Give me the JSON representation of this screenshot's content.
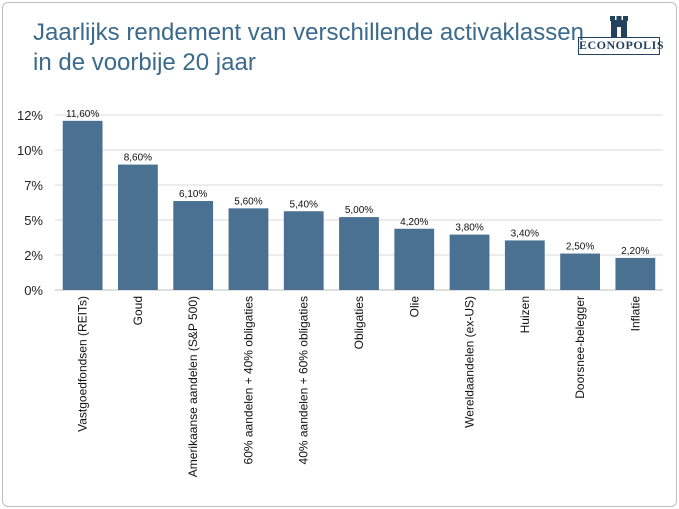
{
  "header": {
    "title_line1": "Jaarlijks rendement van verschillende activaklassen",
    "title_line2": "in de voorbije 20 jaar",
    "logo_text": "ECONOPOLIS"
  },
  "colors": {
    "bar": "#4a7191",
    "title": "#3b6a8c",
    "grid": "#d9d9d9"
  },
  "chart_data": {
    "type": "bar",
    "title": "Jaarlijks rendement van verschillende activaklassen in de voorbije 20 jaar",
    "xlabel": "",
    "ylabel": "",
    "ylim": [
      0,
      12
    ],
    "yticks": [
      0,
      2.4,
      4.8,
      7.2,
      9.6,
      12
    ],
    "ytick_labels": [
      "0%",
      "2%",
      "5%",
      "7%",
      "10%",
      "12%"
    ],
    "grid": true,
    "legend": "none",
    "categories": [
      "Vastgoedfondsen (REITs)",
      "Goud",
      "Amerikaanse aandelen (S&P 500)",
      "60% aandelen + 40% obligaties",
      "40% aandelen + 60% obligaties",
      "Obligaties",
      "Olie",
      "Wereldaandelen (ex-US)",
      "Huizen",
      "Doorsnee-belegger",
      "Inflatie"
    ],
    "values": [
      11.6,
      8.6,
      6.1,
      5.6,
      5.4,
      5.0,
      4.2,
      3.8,
      3.4,
      2.5,
      2.2
    ],
    "data_labels": [
      "11,60%",
      "8,60%",
      "6,10%",
      "5,60%",
      "5,40%",
      "5,00%",
      "4,20%",
      "3,80%",
      "3,40%",
      "2,50%",
      "2,20%"
    ]
  }
}
